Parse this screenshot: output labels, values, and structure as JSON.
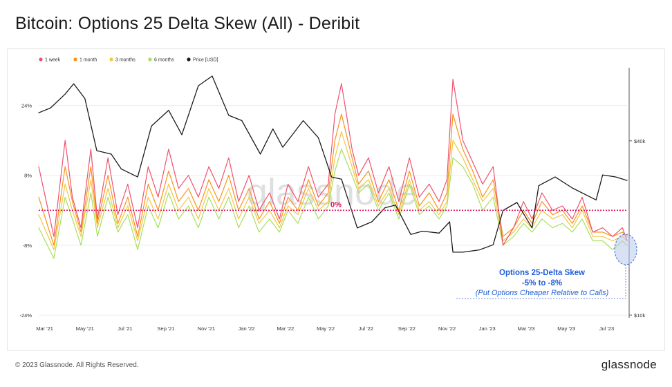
{
  "title": "Bitcoin: Options 25 Delta Skew (All) - Deribit",
  "footer": {
    "copyright": "© 2023 Glassnode. All Rights Reserved.",
    "brand": "glassnode"
  },
  "watermark": "glassnode",
  "chart_data": {
    "type": "line",
    "title": "Bitcoin: Options 25 Delta Skew (All) - Deribit",
    "x_ticks": [
      "Mar '21",
      "May '21",
      "Jul '21",
      "Sep '21",
      "Nov '21",
      "Jan '22",
      "Mar '22",
      "May '22",
      "Jul '22",
      "Sep '22",
      "Nov '22",
      "Jan '23",
      "Mar '23",
      "May '23",
      "Jul '23"
    ],
    "x_range": [
      "2021-02-20",
      "2023-08-01"
    ],
    "y_left": {
      "ticks": [
        "24%",
        "8%",
        "-8%",
        "-24%"
      ],
      "range": [
        -24,
        32
      ],
      "unit": "%"
    },
    "y_right": {
      "ticks": [
        "$40k",
        "$10k"
      ],
      "scale": "log",
      "range": [
        10000,
        70000
      ],
      "unit": "USD"
    },
    "legend_position": "top-left",
    "colors": {
      "1w": "#f0506e",
      "1m": "#f7931a",
      "3m": "#f5c542",
      "6m": "#a6e05a",
      "price": "#1a1a1a",
      "zero": "#e0115f",
      "annotation": "#1f5fd8"
    },
    "reference_line": {
      "value": 0,
      "label": "0%"
    },
    "annotation": {
      "line1": "Options 25-Delta Skew",
      "line2": "-5% to -8%",
      "line3": "(Put Options Cheaper Relative to Calls)"
    },
    "series": [
      {
        "key": "1w",
        "name": "1 week",
        "axis": "left",
        "x": [
          "2021-02-20",
          "2021-03-15",
          "2021-04-01",
          "2021-04-12",
          "2021-04-25",
          "2021-05-10",
          "2021-05-20",
          "2021-06-05",
          "2021-06-20",
          "2021-07-05",
          "2021-07-20",
          "2021-08-05",
          "2021-08-20",
          "2021-09-05",
          "2021-09-20",
          "2021-10-05",
          "2021-10-20",
          "2021-11-05",
          "2021-11-20",
          "2021-12-05",
          "2021-12-20",
          "2022-01-05",
          "2022-01-20",
          "2022-02-05",
          "2022-02-20",
          "2022-03-05",
          "2022-03-20",
          "2022-04-05",
          "2022-04-20",
          "2022-05-05",
          "2022-05-15",
          "2022-05-25",
          "2022-06-10",
          "2022-06-20",
          "2022-07-05",
          "2022-07-20",
          "2022-08-05",
          "2022-08-20",
          "2022-09-05",
          "2022-09-20",
          "2022-10-05",
          "2022-10-20",
          "2022-11-01",
          "2022-11-10",
          "2022-11-25",
          "2022-12-10",
          "2022-12-25",
          "2023-01-10",
          "2023-01-25",
          "2023-02-10",
          "2023-02-25",
          "2023-03-10",
          "2023-03-25",
          "2023-04-10",
          "2023-04-25",
          "2023-05-10",
          "2023-05-25",
          "2023-06-10",
          "2023-06-25",
          "2023-07-10",
          "2023-07-25",
          "2023-08-01"
        ],
        "values": [
          10,
          -6,
          16,
          3,
          -4,
          14,
          -2,
          12,
          -1,
          6,
          -4,
          10,
          3,
          14,
          5,
          8,
          3,
          10,
          5,
          12,
          2,
          8,
          0,
          4,
          -2,
          6,
          2,
          10,
          3,
          6,
          22,
          29,
          14,
          8,
          12,
          4,
          10,
          2,
          12,
          3,
          6,
          2,
          7,
          30,
          16,
          11,
          6,
          10,
          -8,
          -4,
          2,
          -2,
          4,
          0,
          1,
          -2,
          3,
          -5,
          -4,
          -6,
          -4,
          -7
        ]
      },
      {
        "key": "1m",
        "name": "1 month",
        "axis": "left",
        "x": [
          "2021-02-20",
          "2021-03-15",
          "2021-04-01",
          "2021-04-12",
          "2021-04-25",
          "2021-05-10",
          "2021-05-20",
          "2021-06-05",
          "2021-06-20",
          "2021-07-05",
          "2021-07-20",
          "2021-08-05",
          "2021-08-20",
          "2021-09-05",
          "2021-09-20",
          "2021-10-05",
          "2021-10-20",
          "2021-11-05",
          "2021-11-20",
          "2021-12-05",
          "2021-12-20",
          "2022-01-05",
          "2022-01-20",
          "2022-02-05",
          "2022-02-20",
          "2022-03-05",
          "2022-03-20",
          "2022-04-05",
          "2022-04-20",
          "2022-05-05",
          "2022-05-15",
          "2022-05-25",
          "2022-06-10",
          "2022-06-20",
          "2022-07-05",
          "2022-07-20",
          "2022-08-05",
          "2022-08-20",
          "2022-09-05",
          "2022-09-20",
          "2022-10-05",
          "2022-10-20",
          "2022-11-01",
          "2022-11-10",
          "2022-11-25",
          "2022-12-10",
          "2022-12-25",
          "2023-01-10",
          "2023-01-25",
          "2023-02-10",
          "2023-02-25",
          "2023-03-10",
          "2023-03-25",
          "2023-04-10",
          "2023-04-25",
          "2023-05-10",
          "2023-05-25",
          "2023-06-10",
          "2023-06-25",
          "2023-07-10",
          "2023-07-25",
          "2023-08-01"
        ],
        "values": [
          3,
          -8,
          10,
          2,
          -5,
          10,
          -3,
          8,
          -3,
          3,
          -6,
          6,
          0,
          9,
          2,
          5,
          0,
          7,
          2,
          8,
          0,
          5,
          -2,
          2,
          -3,
          3,
          0,
          7,
          1,
          4,
          16,
          22,
          12,
          6,
          9,
          2,
          7,
          0,
          9,
          1,
          4,
          0,
          4,
          22,
          14,
          9,
          3,
          7,
          -6,
          -4,
          0,
          -3,
          2,
          -1,
          0,
          -3,
          1,
          -5,
          -5,
          -6,
          -5,
          -6
        ]
      },
      {
        "key": "3m",
        "name": "3 months",
        "axis": "left",
        "x": [
          "2021-02-20",
          "2021-03-15",
          "2021-04-01",
          "2021-04-12",
          "2021-04-25",
          "2021-05-10",
          "2021-05-20",
          "2021-06-05",
          "2021-06-20",
          "2021-07-05",
          "2021-07-20",
          "2021-08-05",
          "2021-08-20",
          "2021-09-05",
          "2021-09-20",
          "2021-10-05",
          "2021-10-20",
          "2021-11-05",
          "2021-11-20",
          "2021-12-05",
          "2021-12-20",
          "2022-01-05",
          "2022-01-20",
          "2022-02-05",
          "2022-02-20",
          "2022-03-05",
          "2022-03-20",
          "2022-04-05",
          "2022-04-20",
          "2022-05-05",
          "2022-05-15",
          "2022-05-25",
          "2022-06-10",
          "2022-06-20",
          "2022-07-05",
          "2022-07-20",
          "2022-08-05",
          "2022-08-20",
          "2022-09-05",
          "2022-09-20",
          "2022-10-05",
          "2022-10-20",
          "2022-11-01",
          "2022-11-10",
          "2022-11-25",
          "2022-12-10",
          "2022-12-25",
          "2023-01-10",
          "2023-01-25",
          "2023-02-10",
          "2023-02-25",
          "2023-03-10",
          "2023-03-25",
          "2023-04-10",
          "2023-04-25",
          "2023-05-10",
          "2023-05-25",
          "2023-06-10",
          "2023-06-25",
          "2023-07-10",
          "2023-07-25",
          "2023-08-01"
        ],
        "values": [
          -1,
          -9,
          6,
          0,
          -6,
          7,
          -4,
          5,
          -4,
          1,
          -7,
          3,
          -2,
          6,
          0,
          3,
          -2,
          5,
          0,
          5,
          -2,
          3,
          -3,
          0,
          -4,
          1,
          -1,
          5,
          0,
          2,
          12,
          18,
          10,
          5,
          7,
          1,
          5,
          -1,
          7,
          0,
          2,
          -1,
          2,
          16,
          12,
          7,
          2,
          5,
          -7,
          -5,
          -2,
          -4,
          0,
          -2,
          -1,
          -4,
          0,
          -6,
          -6,
          -7,
          -6,
          -7
        ]
      },
      {
        "key": "6m",
        "name": "6 months",
        "axis": "left",
        "x": [
          "2021-02-20",
          "2021-03-15",
          "2021-04-01",
          "2021-04-12",
          "2021-04-25",
          "2021-05-10",
          "2021-05-20",
          "2021-06-05",
          "2021-06-20",
          "2021-07-05",
          "2021-07-20",
          "2021-08-05",
          "2021-08-20",
          "2021-09-05",
          "2021-09-20",
          "2021-10-05",
          "2021-10-20",
          "2021-11-05",
          "2021-11-20",
          "2021-12-05",
          "2021-12-20",
          "2022-01-05",
          "2022-01-20",
          "2022-02-05",
          "2022-02-20",
          "2022-03-05",
          "2022-03-20",
          "2022-04-05",
          "2022-04-20",
          "2022-05-05",
          "2022-05-15",
          "2022-05-25",
          "2022-06-10",
          "2022-06-20",
          "2022-07-05",
          "2022-07-20",
          "2022-08-05",
          "2022-08-20",
          "2022-09-05",
          "2022-09-20",
          "2022-10-05",
          "2022-10-20",
          "2022-11-01",
          "2022-11-10",
          "2022-11-25",
          "2022-12-10",
          "2022-12-25",
          "2023-01-10",
          "2023-01-25",
          "2023-02-10",
          "2023-02-25",
          "2023-03-10",
          "2023-03-25",
          "2023-04-10",
          "2023-04-25",
          "2023-05-10",
          "2023-05-25",
          "2023-06-10",
          "2023-06-25",
          "2023-07-10",
          "2023-07-25",
          "2023-08-01"
        ],
        "values": [
          -4,
          -11,
          3,
          -2,
          -8,
          4,
          -6,
          3,
          -5,
          -1,
          -9,
          1,
          -4,
          4,
          -2,
          1,
          -4,
          3,
          -2,
          3,
          -4,
          1,
          -5,
          -2,
          -5,
          0,
          -3,
          3,
          -2,
          1,
          9,
          14,
          8,
          4,
          6,
          0,
          4,
          -2,
          6,
          -1,
          1,
          -2,
          1,
          12,
          10,
          6,
          0,
          3,
          -8,
          -6,
          -3,
          -5,
          -2,
          -4,
          -3,
          -5,
          -2,
          -7,
          -7,
          -9,
          -7,
          -8
        ]
      },
      {
        "key": "price",
        "name": "Price [USD]",
        "axis": "right",
        "x": [
          "2021-02-20",
          "2021-03-10",
          "2021-04-01",
          "2021-04-14",
          "2021-05-01",
          "2021-05-19",
          "2021-06-10",
          "2021-06-25",
          "2021-07-20",
          "2021-08-10",
          "2021-09-05",
          "2021-09-25",
          "2021-10-20",
          "2021-11-10",
          "2021-12-05",
          "2021-12-25",
          "2022-01-22",
          "2022-02-10",
          "2022-02-25",
          "2022-03-28",
          "2022-04-20",
          "2022-05-10",
          "2022-05-25",
          "2022-06-18",
          "2022-07-10",
          "2022-07-30",
          "2022-08-15",
          "2022-09-07",
          "2022-09-25",
          "2022-10-20",
          "2022-11-05",
          "2022-11-10",
          "2022-11-25",
          "2022-12-20",
          "2023-01-10",
          "2023-01-25",
          "2023-02-15",
          "2023-03-10",
          "2023-03-20",
          "2023-04-14",
          "2023-05-10",
          "2023-06-15",
          "2023-06-25",
          "2023-07-15",
          "2023-08-01"
        ],
        "values": [
          50000,
          52000,
          58000,
          63000,
          56000,
          37000,
          36000,
          32000,
          30000,
          45000,
          51000,
          42000,
          62000,
          67000,
          49000,
          47000,
          36000,
          44000,
          38000,
          47000,
          41000,
          30000,
          29500,
          20000,
          21000,
          23500,
          24000,
          19000,
          19500,
          19200,
          21000,
          16500,
          16500,
          16800,
          17500,
          23000,
          24500,
          20000,
          28000,
          30000,
          27500,
          25000,
          30500,
          30000,
          29200
        ]
      }
    ]
  }
}
